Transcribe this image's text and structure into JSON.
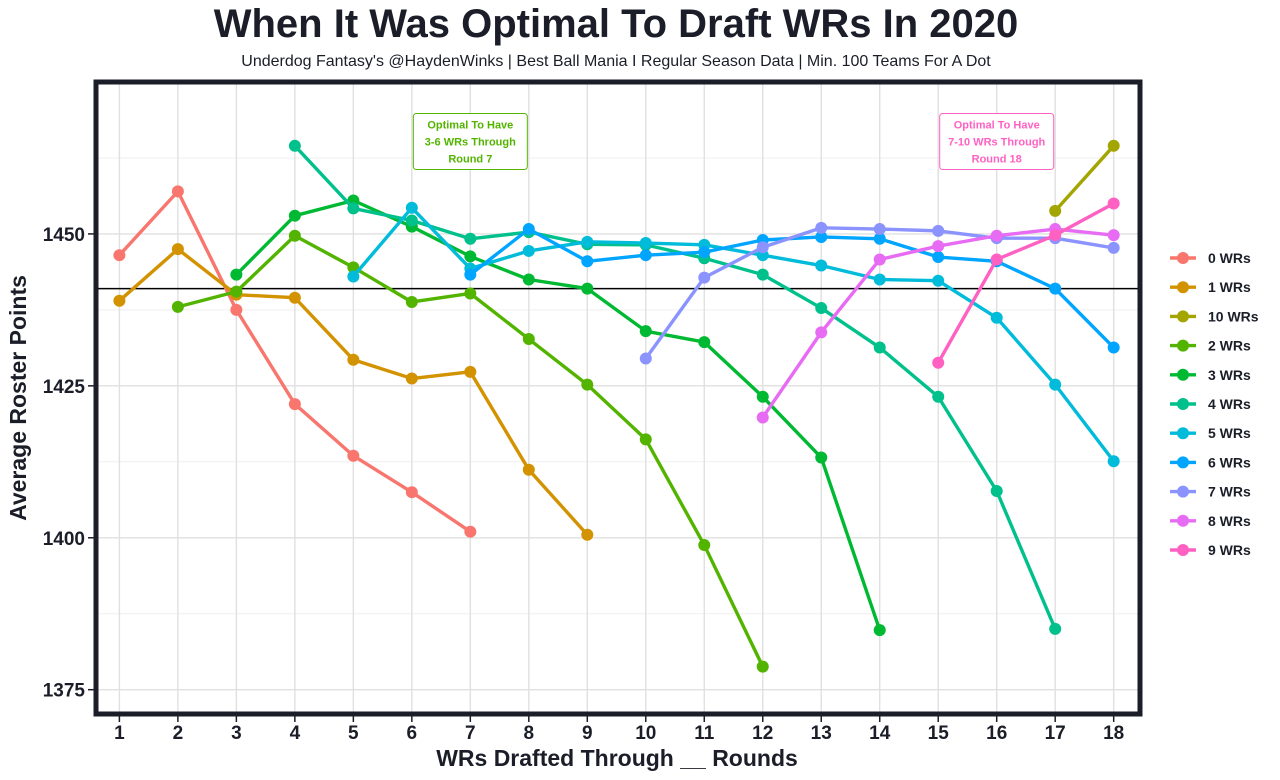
{
  "chart_data": {
    "type": "line",
    "title": "When It Was Optimal To Draft WRs In 2020",
    "subtitle": "Underdog Fantasy's @HaydenWinks | Best Ball Mania I Regular Season Data | Min. 100 Teams For A Dot",
    "xlabel": "WRs Drafted Through __ Rounds",
    "ylabel": "Average Roster Points",
    "x_ticks": [
      1,
      2,
      3,
      4,
      5,
      6,
      7,
      8,
      9,
      10,
      11,
      12,
      13,
      14,
      15,
      16,
      17,
      18
    ],
    "y_ticks": [
      1375,
      1400,
      1425,
      1450
    ],
    "xlim": [
      0.6,
      18.45
    ],
    "ylim": [
      1371,
      1475
    ],
    "reference_line": 1441,
    "legend_position": "right",
    "series": [
      {
        "name": "0 WRs",
        "color": "#F8766D",
        "points": [
          [
            1,
            1446.5
          ],
          [
            2,
            1457
          ],
          [
            3,
            1437.5
          ],
          [
            4,
            1422
          ],
          [
            5,
            1413.5
          ],
          [
            6,
            1407.5
          ],
          [
            7,
            1401
          ]
        ]
      },
      {
        "name": "1 WRs",
        "color": "#D39200",
        "points": [
          [
            1,
            1439
          ],
          [
            2,
            1447.5
          ],
          [
            3,
            1440
          ],
          [
            4,
            1439.5
          ],
          [
            5,
            1429.3
          ],
          [
            6,
            1426.2
          ],
          [
            7,
            1427.3
          ],
          [
            8,
            1411.2
          ],
          [
            9,
            1400.5
          ]
        ]
      },
      {
        "name": "10 WRs",
        "color": "#A3A500",
        "points": [
          [
            17,
            1453.8
          ],
          [
            18,
            1464.5
          ]
        ]
      },
      {
        "name": "2 WRs",
        "color": "#53B400",
        "points": [
          [
            2,
            1438
          ],
          [
            3,
            1440.5
          ],
          [
            4,
            1449.7
          ],
          [
            5,
            1444.5
          ],
          [
            6,
            1438.8
          ],
          [
            7,
            1440.2
          ],
          [
            8,
            1432.7
          ],
          [
            9,
            1425.2
          ],
          [
            10,
            1416.2
          ],
          [
            11,
            1398.8
          ],
          [
            12,
            1378.8
          ]
        ]
      },
      {
        "name": "3 WRs",
        "color": "#00B932",
        "points": [
          [
            3,
            1443.3
          ],
          [
            4,
            1453
          ],
          [
            5,
            1455.5
          ],
          [
            6,
            1451.2
          ],
          [
            7,
            1446.3
          ],
          [
            8,
            1442.5
          ],
          [
            9,
            1441
          ],
          [
            10,
            1434
          ],
          [
            11,
            1432.2
          ],
          [
            12,
            1423.2
          ],
          [
            13,
            1413.2
          ],
          [
            14,
            1384.8
          ]
        ]
      },
      {
        "name": "4 WRs",
        "color": "#00C08B",
        "points": [
          [
            4,
            1464.5
          ],
          [
            5,
            1454.2
          ],
          [
            6,
            1452.2
          ],
          [
            7,
            1449.2
          ],
          [
            8,
            1450.3
          ],
          [
            9,
            1448.3
          ],
          [
            10,
            1448.2
          ],
          [
            11,
            1446
          ],
          [
            12,
            1443.3
          ],
          [
            13,
            1437.8
          ],
          [
            14,
            1431.3
          ],
          [
            15,
            1423.2
          ],
          [
            16,
            1407.7
          ],
          [
            17,
            1385
          ]
        ]
      },
      {
        "name": "5 WRs",
        "color": "#00BBDA",
        "points": [
          [
            5,
            1443
          ],
          [
            6,
            1454.3
          ],
          [
            7,
            1444.3
          ],
          [
            8,
            1447.2
          ],
          [
            9,
            1448.7
          ],
          [
            10,
            1448.5
          ],
          [
            11,
            1448.2
          ],
          [
            12,
            1446.5
          ],
          [
            13,
            1444.8
          ],
          [
            14,
            1442.5
          ],
          [
            15,
            1442.3
          ],
          [
            16,
            1436.2
          ],
          [
            17,
            1425.2
          ],
          [
            18,
            1412.6
          ]
        ]
      },
      {
        "name": "6 WRs",
        "color": "#00A5FF",
        "points": [
          [
            7,
            1443.3
          ],
          [
            8,
            1450.8
          ],
          [
            9,
            1445.5
          ],
          [
            10,
            1446.5
          ],
          [
            11,
            1447
          ],
          [
            12,
            1449
          ],
          [
            13,
            1449.5
          ],
          [
            14,
            1449.2
          ],
          [
            15,
            1446.2
          ],
          [
            16,
            1445.5
          ],
          [
            17,
            1441
          ],
          [
            18,
            1431.3
          ]
        ]
      },
      {
        "name": "7 WRs",
        "color": "#8B93FF",
        "points": [
          [
            10,
            1429.5
          ],
          [
            11,
            1442.8
          ],
          [
            12,
            1447.8
          ],
          [
            13,
            1451
          ],
          [
            14,
            1450.8
          ],
          [
            15,
            1450.5
          ],
          [
            16,
            1449.3
          ],
          [
            17,
            1449.3
          ],
          [
            18,
            1447.7
          ]
        ]
      },
      {
        "name": "8 WRs",
        "color": "#E76BF3",
        "points": [
          [
            12,
            1419.8
          ],
          [
            13,
            1433.8
          ],
          [
            14,
            1445.8
          ],
          [
            15,
            1448
          ],
          [
            16,
            1449.7
          ],
          [
            17,
            1450.8
          ],
          [
            18,
            1449.8
          ]
        ]
      },
      {
        "name": "9 WRs",
        "color": "#FF61C3",
        "points": [
          [
            15,
            1428.8
          ],
          [
            16,
            1445.8
          ],
          [
            17,
            1449.8
          ],
          [
            18,
            1455
          ]
        ]
      }
    ],
    "annotations": [
      {
        "text_lines": [
          "Optimal To Have",
          "3-6 WRs Through",
          "Round 7"
        ],
        "x": 7,
        "y": 1465.2,
        "color": "#53B400"
      },
      {
        "text_lines": [
          "Optimal To Have",
          "7-10 WRs Through",
          "Round 18"
        ],
        "x": 16,
        "y": 1465.2,
        "color": "#FF61C3"
      }
    ]
  }
}
